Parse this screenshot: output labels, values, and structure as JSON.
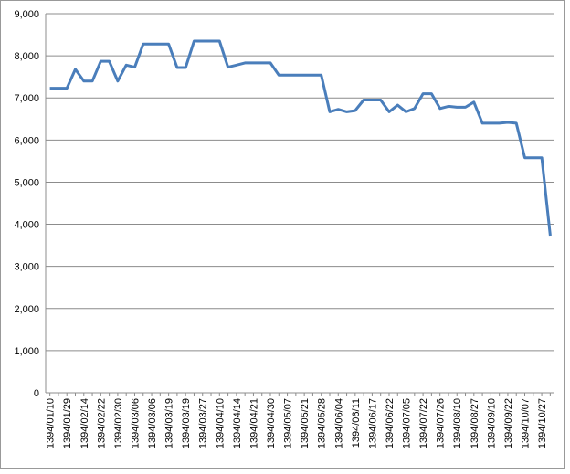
{
  "chart_data": {
    "type": "line",
    "categories": [
      "1394/01/10",
      null,
      "1394/01/29",
      null,
      "1394/02/14",
      null,
      "1394/02/22",
      null,
      "1394/02/30",
      null,
      "1394/03/06",
      null,
      "1394/03/06",
      null,
      "1394/03/19",
      null,
      "1394/03/19",
      null,
      "1394/03/27",
      null,
      "1394/04/10",
      null,
      "1394/04/14",
      null,
      "1394/04/21",
      null,
      "1394/04/30",
      null,
      "1394/05/07",
      null,
      "1394/05/21",
      null,
      "1394/05/28",
      null,
      "1394/06/04",
      null,
      "1394/06/11",
      null,
      "1394/06/17",
      null,
      "1394/06/22",
      null,
      "1394/07/05",
      null,
      "1394/07/22",
      null,
      "1394/07/26",
      null,
      "1394/08/10",
      null,
      "1394/08/27",
      null,
      "1394/09/10",
      null,
      "1394/09/22",
      null,
      "1394/10/07",
      null,
      "1394/10/27",
      null
    ],
    "values": [
      7230,
      7230,
      7230,
      7680,
      7400,
      7400,
      7870,
      7870,
      7400,
      7780,
      7730,
      8280,
      8280,
      8280,
      8280,
      7720,
      7720,
      8350,
      8350,
      8350,
      8350,
      7730,
      7780,
      7830,
      7830,
      7830,
      7830,
      7540,
      7540,
      7540,
      7540,
      7540,
      7540,
      6670,
      6730,
      6670,
      6700,
      6950,
      6950,
      6950,
      6670,
      6830,
      6670,
      6750,
      7100,
      7100,
      6750,
      6800,
      6780,
      6780,
      6900,
      6400,
      6400,
      6400,
      6420,
      6400,
      5580,
      5580,
      5580,
      3730
    ],
    "color": "#4a7ebb",
    "ylim": [
      0,
      9000
    ],
    "yticks": [
      0,
      {
        "value": 1000,
        "label": "1,000"
      },
      {
        "value": 2000,
        "label": "2,000"
      },
      {
        "value": 3000,
        "label": "3,000"
      },
      {
        "value": 4000,
        "label": "4,000"
      },
      {
        "value": 5000,
        "label": "5,000"
      },
      {
        "value": 6000,
        "label": "6,000"
      },
      {
        "value": 7000,
        "label": "7,000"
      },
      {
        "value": 8000,
        "label": "8,000"
      },
      {
        "value": 9000,
        "label": "9,000"
      }
    ],
    "grid": true
  }
}
